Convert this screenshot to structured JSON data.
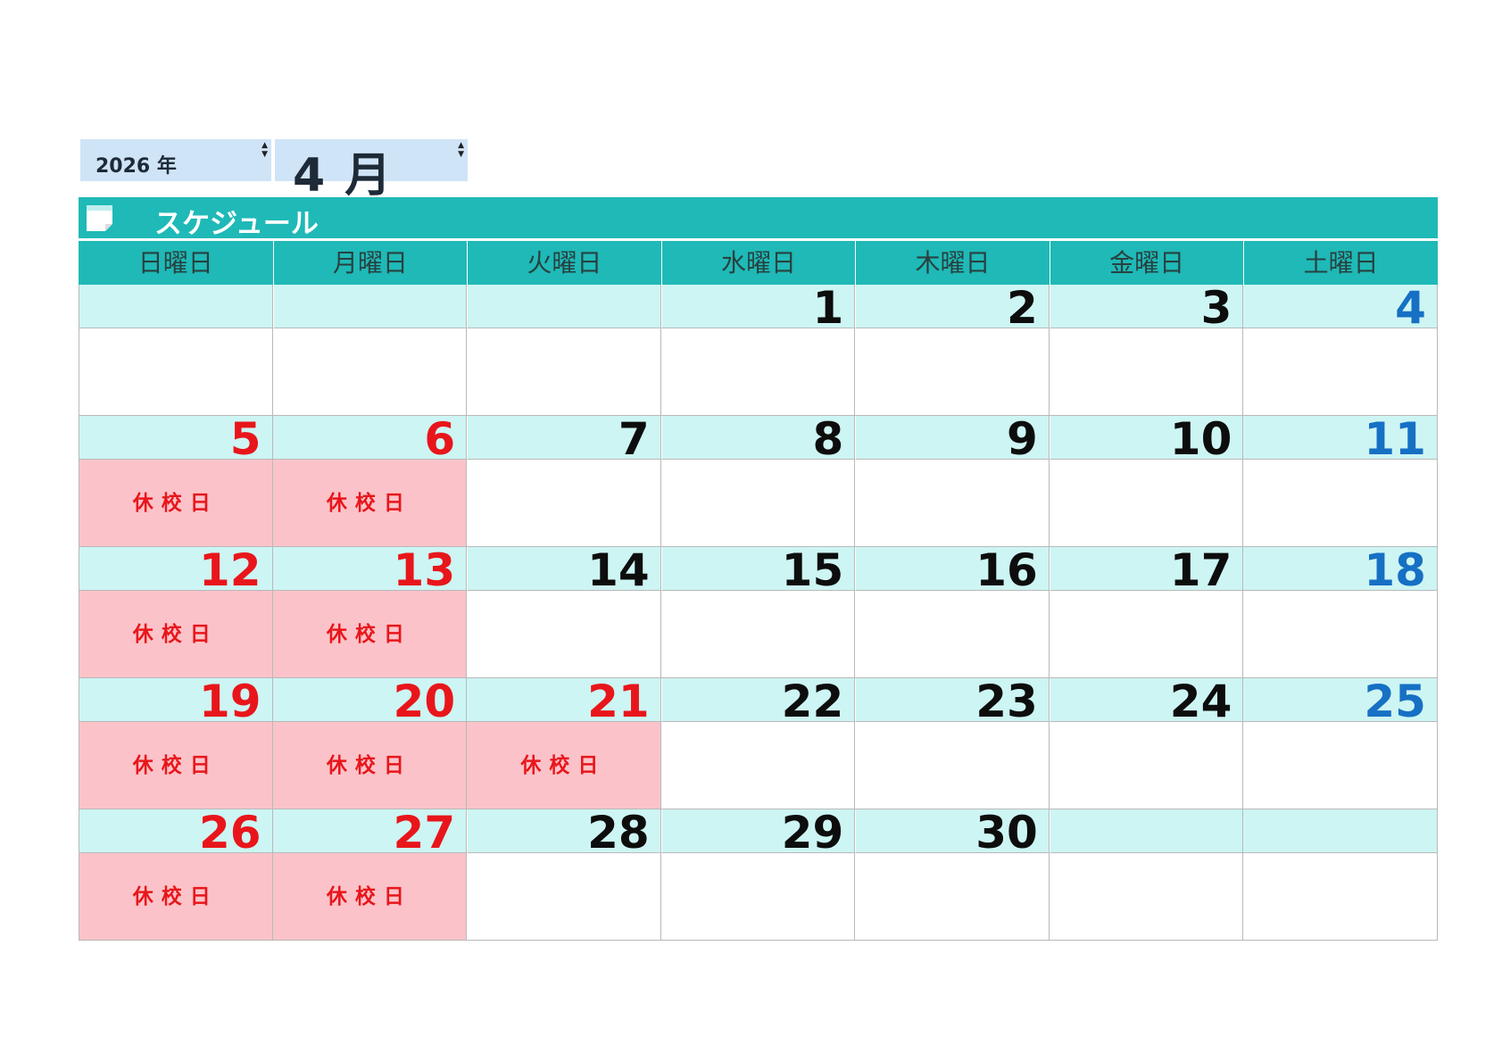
{
  "header": {
    "year_value": "2026",
    "year_unit": "年",
    "month_value": "4",
    "month_unit": "月"
  },
  "title": "スケジュール",
  "weekdays": [
    "日曜日",
    "月曜日",
    "火曜日",
    "水曜日",
    "木曜日",
    "金曜日",
    "土曜日"
  ],
  "closed_label": "休校日",
  "colors": {
    "teal": "#1fb9b7",
    "date_row_bg": "#cdf5f3",
    "closed_bg": "#fbc3c9",
    "red": "#e8161b",
    "blue": "#1670c4",
    "spinner_bg": "#cfe4f7"
  },
  "weeks": [
    {
      "days": [
        {
          "date": "",
          "type": "sun",
          "note": ""
        },
        {
          "date": "",
          "type": "wd",
          "note": ""
        },
        {
          "date": "",
          "type": "wd",
          "note": ""
        },
        {
          "date": "1",
          "type": "wd",
          "note": ""
        },
        {
          "date": "2",
          "type": "wd",
          "note": ""
        },
        {
          "date": "3",
          "type": "wd",
          "note": ""
        },
        {
          "date": "4",
          "type": "sat",
          "note": ""
        }
      ]
    },
    {
      "days": [
        {
          "date": "5",
          "type": "sun",
          "note": "休校日"
        },
        {
          "date": "6",
          "type": "hol",
          "note": "休校日"
        },
        {
          "date": "7",
          "type": "wd",
          "note": ""
        },
        {
          "date": "8",
          "type": "wd",
          "note": ""
        },
        {
          "date": "9",
          "type": "wd",
          "note": ""
        },
        {
          "date": "10",
          "type": "wd",
          "note": ""
        },
        {
          "date": "11",
          "type": "sat",
          "note": ""
        }
      ]
    },
    {
      "days": [
        {
          "date": "12",
          "type": "sun",
          "note": "休校日"
        },
        {
          "date": "13",
          "type": "hol",
          "note": "休校日"
        },
        {
          "date": "14",
          "type": "wd",
          "note": ""
        },
        {
          "date": "15",
          "type": "wd",
          "note": ""
        },
        {
          "date": "16",
          "type": "wd",
          "note": ""
        },
        {
          "date": "17",
          "type": "wd",
          "note": ""
        },
        {
          "date": "18",
          "type": "sat",
          "note": ""
        }
      ]
    },
    {
      "days": [
        {
          "date": "19",
          "type": "sun",
          "note": "休校日"
        },
        {
          "date": "20",
          "type": "hol",
          "note": "休校日"
        },
        {
          "date": "21",
          "type": "hol",
          "note": "休校日"
        },
        {
          "date": "22",
          "type": "wd",
          "note": ""
        },
        {
          "date": "23",
          "type": "wd",
          "note": ""
        },
        {
          "date": "24",
          "type": "wd",
          "note": ""
        },
        {
          "date": "25",
          "type": "sat",
          "note": ""
        }
      ]
    },
    {
      "days": [
        {
          "date": "26",
          "type": "sun",
          "note": "休校日"
        },
        {
          "date": "27",
          "type": "hol",
          "note": "休校日"
        },
        {
          "date": "28",
          "type": "wd",
          "note": ""
        },
        {
          "date": "29",
          "type": "wd",
          "note": ""
        },
        {
          "date": "30",
          "type": "wd",
          "note": ""
        },
        {
          "date": "",
          "type": "wd",
          "note": ""
        },
        {
          "date": "",
          "type": "sat",
          "note": ""
        }
      ]
    }
  ]
}
